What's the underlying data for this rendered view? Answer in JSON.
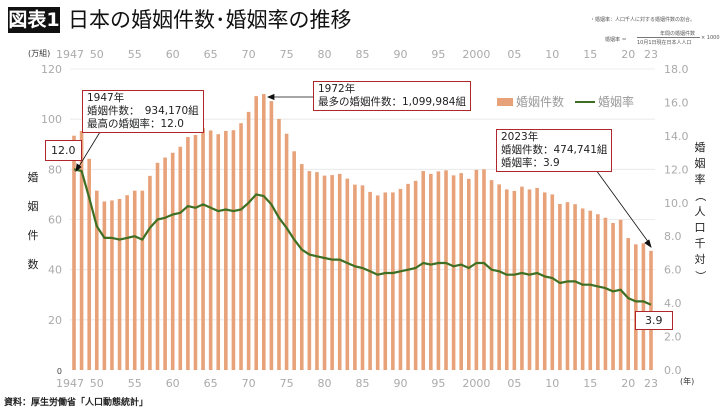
{
  "header": {
    "figure_label": "図表1",
    "title": "日本の婚姻件数･婚姻率の推移"
  },
  "note": {
    "definition": "・婚姻率：人口千人に対する婚姻件数の割合。",
    "formula_lhs": "婚姻率 ＝",
    "formula_num": "年間の婚姻件数",
    "formula_den": "10月1日現在日本人人口",
    "formula_mult": "× 1000"
  },
  "source": "資料：厚生労働省「人口動態統計」",
  "annotations": {
    "a1947": [
      "1947年",
      "婚姻件数：　934,170組",
      "最高の婚姻率：12.0"
    ],
    "a1947_rate": "12.0",
    "a1972": [
      "1972年",
      "最多の婚姻件数：1,099,984組"
    ],
    "a2023": [
      "2023年",
      "婚姻件数：474,741組",
      "婚姻率：3.9"
    ],
    "a2023_rate": "3.9"
  },
  "colors": {
    "bars": "#e8a27a",
    "line": "#3f6f22",
    "annotation_border": "#b0262d"
  },
  "chart_data": {
    "type": "bar+line",
    "title": "日本の婚姻件数･婚姻率の推移",
    "x": [
      1947,
      1948,
      1949,
      1950,
      1951,
      1952,
      1953,
      1954,
      1955,
      1956,
      1957,
      1958,
      1959,
      1960,
      1961,
      1962,
      1963,
      1964,
      1965,
      1966,
      1967,
      1968,
      1969,
      1970,
      1971,
      1972,
      1973,
      1974,
      1975,
      1976,
      1977,
      1978,
      1979,
      1980,
      1981,
      1982,
      1983,
      1984,
      1985,
      1986,
      1987,
      1988,
      1989,
      1990,
      1991,
      1992,
      1993,
      1994,
      1995,
      1996,
      1997,
      1998,
      1999,
      2000,
      2001,
      2002,
      2003,
      2004,
      2005,
      2006,
      2007,
      2008,
      2009,
      2010,
      2011,
      2012,
      2013,
      2014,
      2015,
      2016,
      2017,
      2018,
      2019,
      2020,
      2021,
      2022,
      2023
    ],
    "x_tick_labels": [
      "1947",
      "50",
      "55",
      "60",
      "65",
      "70",
      "75",
      "80",
      "85",
      "90",
      "95",
      "2000",
      "05",
      "10",
      "15",
      "20",
      "23"
    ],
    "x_tick_years": [
      1947,
      1950,
      1955,
      1960,
      1965,
      1970,
      1975,
      1980,
      1985,
      1990,
      1995,
      2000,
      2005,
      2010,
      2015,
      2020,
      2023
    ],
    "xlabel": "(年)",
    "series": [
      {
        "name": "婚姻件数",
        "type": "bar",
        "axis": "left",
        "values": [
          93.4,
          95.3,
          84.2,
          71.5,
          67.2,
          67.6,
          68.2,
          69.7,
          71.5,
          71.5,
          77.4,
          82.6,
          84.7,
          86.6,
          89.0,
          92.9,
          93.7,
          96.4,
          95.5,
          94.0,
          95.3,
          95.6,
          98.4,
          102.9,
          109.2,
          110.0,
          107.2,
          100.1,
          94.2,
          87.2,
          82.1,
          79.3,
          78.9,
          77.5,
          77.7,
          78.2,
          76.3,
          73.9,
          73.6,
          71.0,
          69.6,
          70.8,
          70.8,
          72.2,
          74.2,
          75.4,
          79.3,
          78.2,
          79.2,
          79.6,
          77.6,
          78.5,
          76.2,
          79.8,
          80.0,
          75.7,
          74.0,
          72.0,
          71.4,
          73.1,
          72.0,
          72.6,
          70.8,
          70.0,
          66.2,
          66.9,
          66.1,
          64.4,
          63.5,
          62.1,
          60.7,
          58.6,
          59.9,
          52.6,
          50.1,
          50.5,
          47.5
        ]
      },
      {
        "name": "婚姻率",
        "type": "line",
        "axis": "right",
        "values": [
          12.0,
          11.9,
          10.3,
          8.6,
          7.9,
          7.9,
          7.8,
          7.9,
          8.0,
          7.8,
          8.5,
          9.0,
          9.1,
          9.3,
          9.4,
          9.8,
          9.7,
          9.9,
          9.7,
          9.5,
          9.6,
          9.5,
          9.6,
          10.0,
          10.5,
          10.4,
          9.9,
          9.1,
          8.5,
          7.8,
          7.2,
          6.9,
          6.8,
          6.7,
          6.6,
          6.6,
          6.4,
          6.2,
          6.1,
          5.9,
          5.7,
          5.8,
          5.8,
          5.9,
          6.0,
          6.1,
          6.4,
          6.3,
          6.4,
          6.4,
          6.2,
          6.3,
          6.1,
          6.4,
          6.4,
          6.0,
          5.9,
          5.7,
          5.7,
          5.8,
          5.7,
          5.8,
          5.6,
          5.5,
          5.2,
          5.3,
          5.3,
          5.1,
          5.1,
          5.0,
          4.9,
          4.7,
          4.8,
          4.3,
          4.1,
          4.1,
          3.9
        ]
      }
    ],
    "y_left": {
      "unit": "(万組)",
      "label": "婚姻件数",
      "ylim": [
        0,
        120
      ],
      "ticks": [
        "0",
        "20",
        "40",
        "60",
        "80",
        "100",
        "120"
      ]
    },
    "y_right": {
      "label": "婚姻率（人口千対）",
      "ylim": [
        0,
        18
      ],
      "ticks": [
        "0.0",
        "2.0",
        "4.0",
        "6.0",
        "8.0",
        "10.0",
        "12.0",
        "14.0",
        "16.0",
        "18.0"
      ]
    },
    "grid": true,
    "legend": "top-right"
  }
}
